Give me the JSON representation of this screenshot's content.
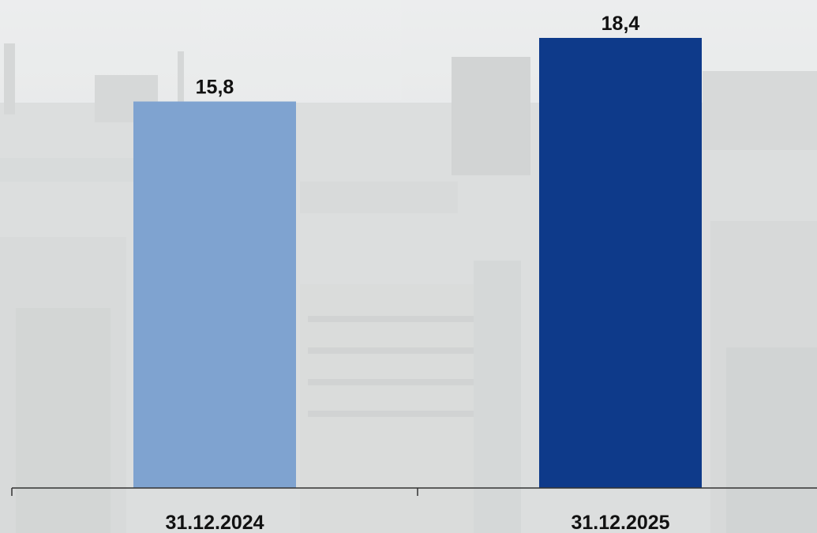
{
  "chart_data": {
    "type": "bar",
    "title": "",
    "xlabel": "",
    "ylabel": "",
    "categories": [
      "31.12.2024",
      "31.12.2025"
    ],
    "values": [
      15.8,
      18.4
    ],
    "value_labels": [
      "15,8",
      "18,4"
    ],
    "ylim": [
      0,
      18.4
    ],
    "grid": false,
    "legend": "none",
    "colors": [
      "#7fa3d0",
      "#0e3a8a"
    ]
  },
  "background": {
    "description_icon": "city-skyline-photo",
    "tint": "#e4e6e7"
  }
}
